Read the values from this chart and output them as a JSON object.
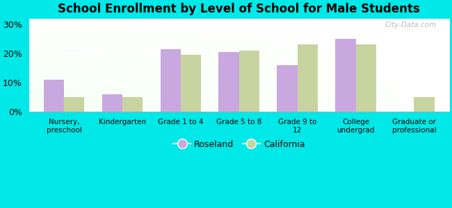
{
  "title": "School Enrollment by Level of School for Male Students",
  "categories": [
    "Nursery,\npreschool",
    "Kindergarten",
    "Grade 1 to 4",
    "Grade 5 to 8",
    "Grade 9 to\n12",
    "College\nundergrad",
    "Graduate or\nprofessional"
  ],
  "roseland": [
    11,
    6,
    21.5,
    20.5,
    16,
    25,
    0
  ],
  "california": [
    5,
    5,
    19.5,
    21,
    23,
    23,
    5
  ],
  "roseland_color": "#c9a8e0",
  "california_color": "#c8d4a0",
  "background_outer": "#00e8e8",
  "title_fontsize": 12,
  "ylabel_ticks": [
    "0%",
    "10%",
    "20%",
    "30%"
  ],
  "ytick_vals": [
    0,
    10,
    20,
    30
  ],
  "ylim": [
    0,
    32
  ],
  "bar_width": 0.35,
  "legend_labels": [
    "Roseland",
    "California"
  ],
  "watermark": "City-Data.com"
}
